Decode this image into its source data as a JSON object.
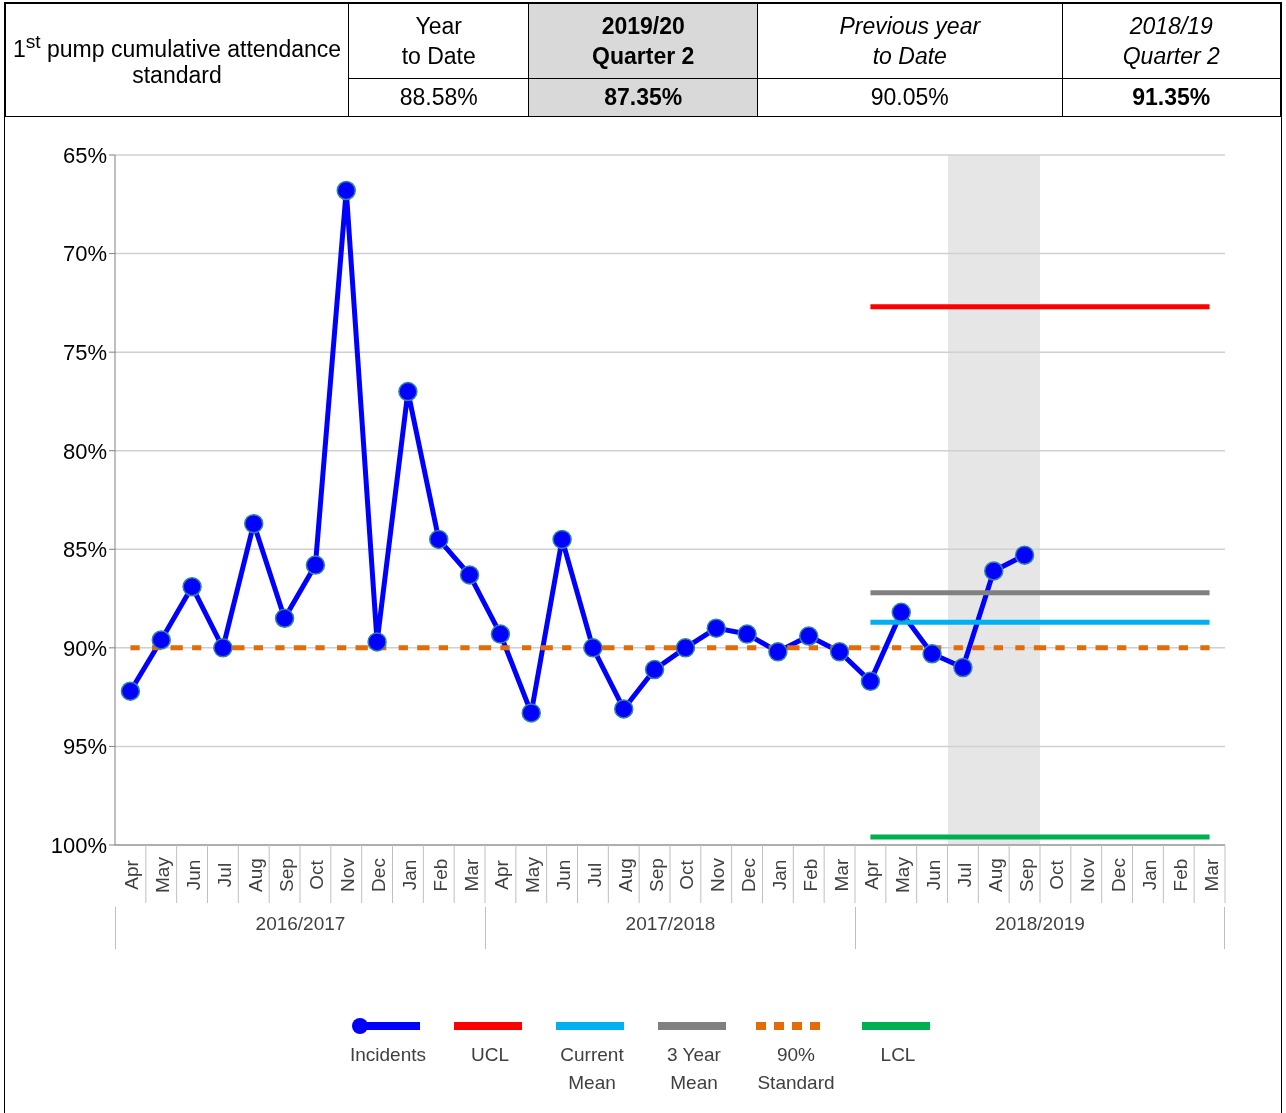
{
  "chart_data": {
    "type": "line",
    "title": "1$^{st}$ pump cumulative attendance standard",
    "annotations": [
      "Year\nto Date",
      "2019/20\nQuarter 2",
      "Previous year\nto Date",
      "2018/19\nQuarter 2",
      "88.58%",
      "87.35%",
      "90.05%",
      "91.35%",
      "2016/2017",
      "2017/2018",
      "2018/2019"
    ],
    "categories": [
      "Apr",
      "May",
      "Jun",
      "Jul",
      "Aug",
      "Sep",
      "Oct",
      "Nov",
      "Dec",
      "Jan",
      "Feb",
      "Mar",
      "Apr",
      "May",
      "Jun",
      "Jul",
      "Aug",
      "Sep",
      "Oct",
      "Nov",
      "Dec",
      "Jan",
      "Feb",
      "Mar",
      "Apr",
      "May",
      "Jun",
      "Jul",
      "Aug",
      "Sep",
      "Oct",
      "Nov",
      "Dec",
      "Jan",
      "Feb",
      "Mar"
    ],
    "series": [
      {
        "name": "Incidents",
        "color": "#0000ff",
        "marker": "circle",
        "values": [
          92.2,
          89.6,
          86.9,
          90.0,
          83.7,
          88.5,
          85.8,
          66.8,
          89.7,
          77.0,
          84.5,
          86.3,
          89.3,
          93.3,
          84.5,
          90.0,
          93.1,
          91.1,
          90.0,
          89.0,
          89.3,
          90.2,
          89.4,
          90.2,
          91.7,
          88.2,
          90.3,
          91.0,
          86.1,
          85.3,
          null,
          null,
          null,
          null,
          null,
          null
        ]
      },
      {
        "name": "UCL",
        "color": "#ff0000",
        "marker": "none",
        "values": [
          null,
          null,
          null,
          null,
          null,
          null,
          null,
          null,
          null,
          null,
          null,
          null,
          null,
          null,
          null,
          null,
          null,
          null,
          null,
          null,
          null,
          null,
          null,
          null,
          72.7,
          72.7,
          72.7,
          72.7,
          72.7,
          72.7,
          72.7,
          72.7,
          72.7,
          72.7,
          72.7,
          72.7
        ]
      },
      {
        "name": "Current Mean",
        "color": "#00b0f0",
        "marker": "none",
        "values": [
          null,
          null,
          null,
          null,
          null,
          null,
          null,
          null,
          null,
          null,
          null,
          null,
          null,
          null,
          null,
          null,
          null,
          null,
          null,
          null,
          null,
          null,
          null,
          null,
          88.7,
          88.7,
          88.7,
          88.7,
          88.7,
          88.7,
          88.7,
          88.7,
          88.7,
          88.7,
          88.7,
          88.7
        ]
      },
      {
        "name": "3 Year Mean",
        "color": "#808080",
        "marker": "none",
        "values": [
          null,
          null,
          null,
          null,
          null,
          null,
          null,
          null,
          null,
          null,
          null,
          null,
          null,
          null,
          null,
          null,
          null,
          null,
          null,
          null,
          null,
          null,
          null,
          null,
          87.2,
          87.2,
          87.2,
          87.2,
          87.2,
          87.2,
          87.2,
          87.2,
          87.2,
          87.2,
          87.2,
          87.2
        ]
      },
      {
        "name": "90% Standard",
        "color": "#e36c09",
        "marker": "none",
        "line_style": "dashed",
        "values": [
          90,
          90,
          90,
          90,
          90,
          90,
          90,
          90,
          null,
          90,
          90,
          90,
          90,
          90,
          90,
          90,
          90,
          90,
          90,
          90,
          90,
          null,
          90,
          null,
          90,
          90,
          null,
          90,
          90,
          90,
          90,
          90,
          90,
          90,
          90,
          90
        ]
      },
      {
        "name": "LCL",
        "color": "#00b050",
        "marker": "none",
        "values": [
          null,
          null,
          null,
          null,
          null,
          null,
          null,
          null,
          null,
          null,
          null,
          null,
          null,
          null,
          null,
          null,
          null,
          null,
          null,
          null,
          null,
          null,
          null,
          null,
          99.6,
          99.6,
          99.6,
          99.6,
          99.6,
          99.6,
          99.6,
          99.6,
          99.6,
          99.6,
          99.6,
          99.6
        ]
      }
    ],
    "ylim": [
      100,
      65
    ],
    "yticks": [
      {
        "value": 65,
        "label": "65%"
      },
      {
        "value": 70,
        "label": "70%"
      },
      {
        "value": 75,
        "label": "75%"
      },
      {
        "value": 80,
        "label": "80%"
      },
      {
        "value": 85,
        "label": "85%"
      },
      {
        "value": 90,
        "label": "90%"
      },
      {
        "value": 95,
        "label": "95%"
      },
      {
        "value": 100,
        "label": "100%"
      }
    ],
    "grid": "y",
    "legend": "bottom"
  }
}
